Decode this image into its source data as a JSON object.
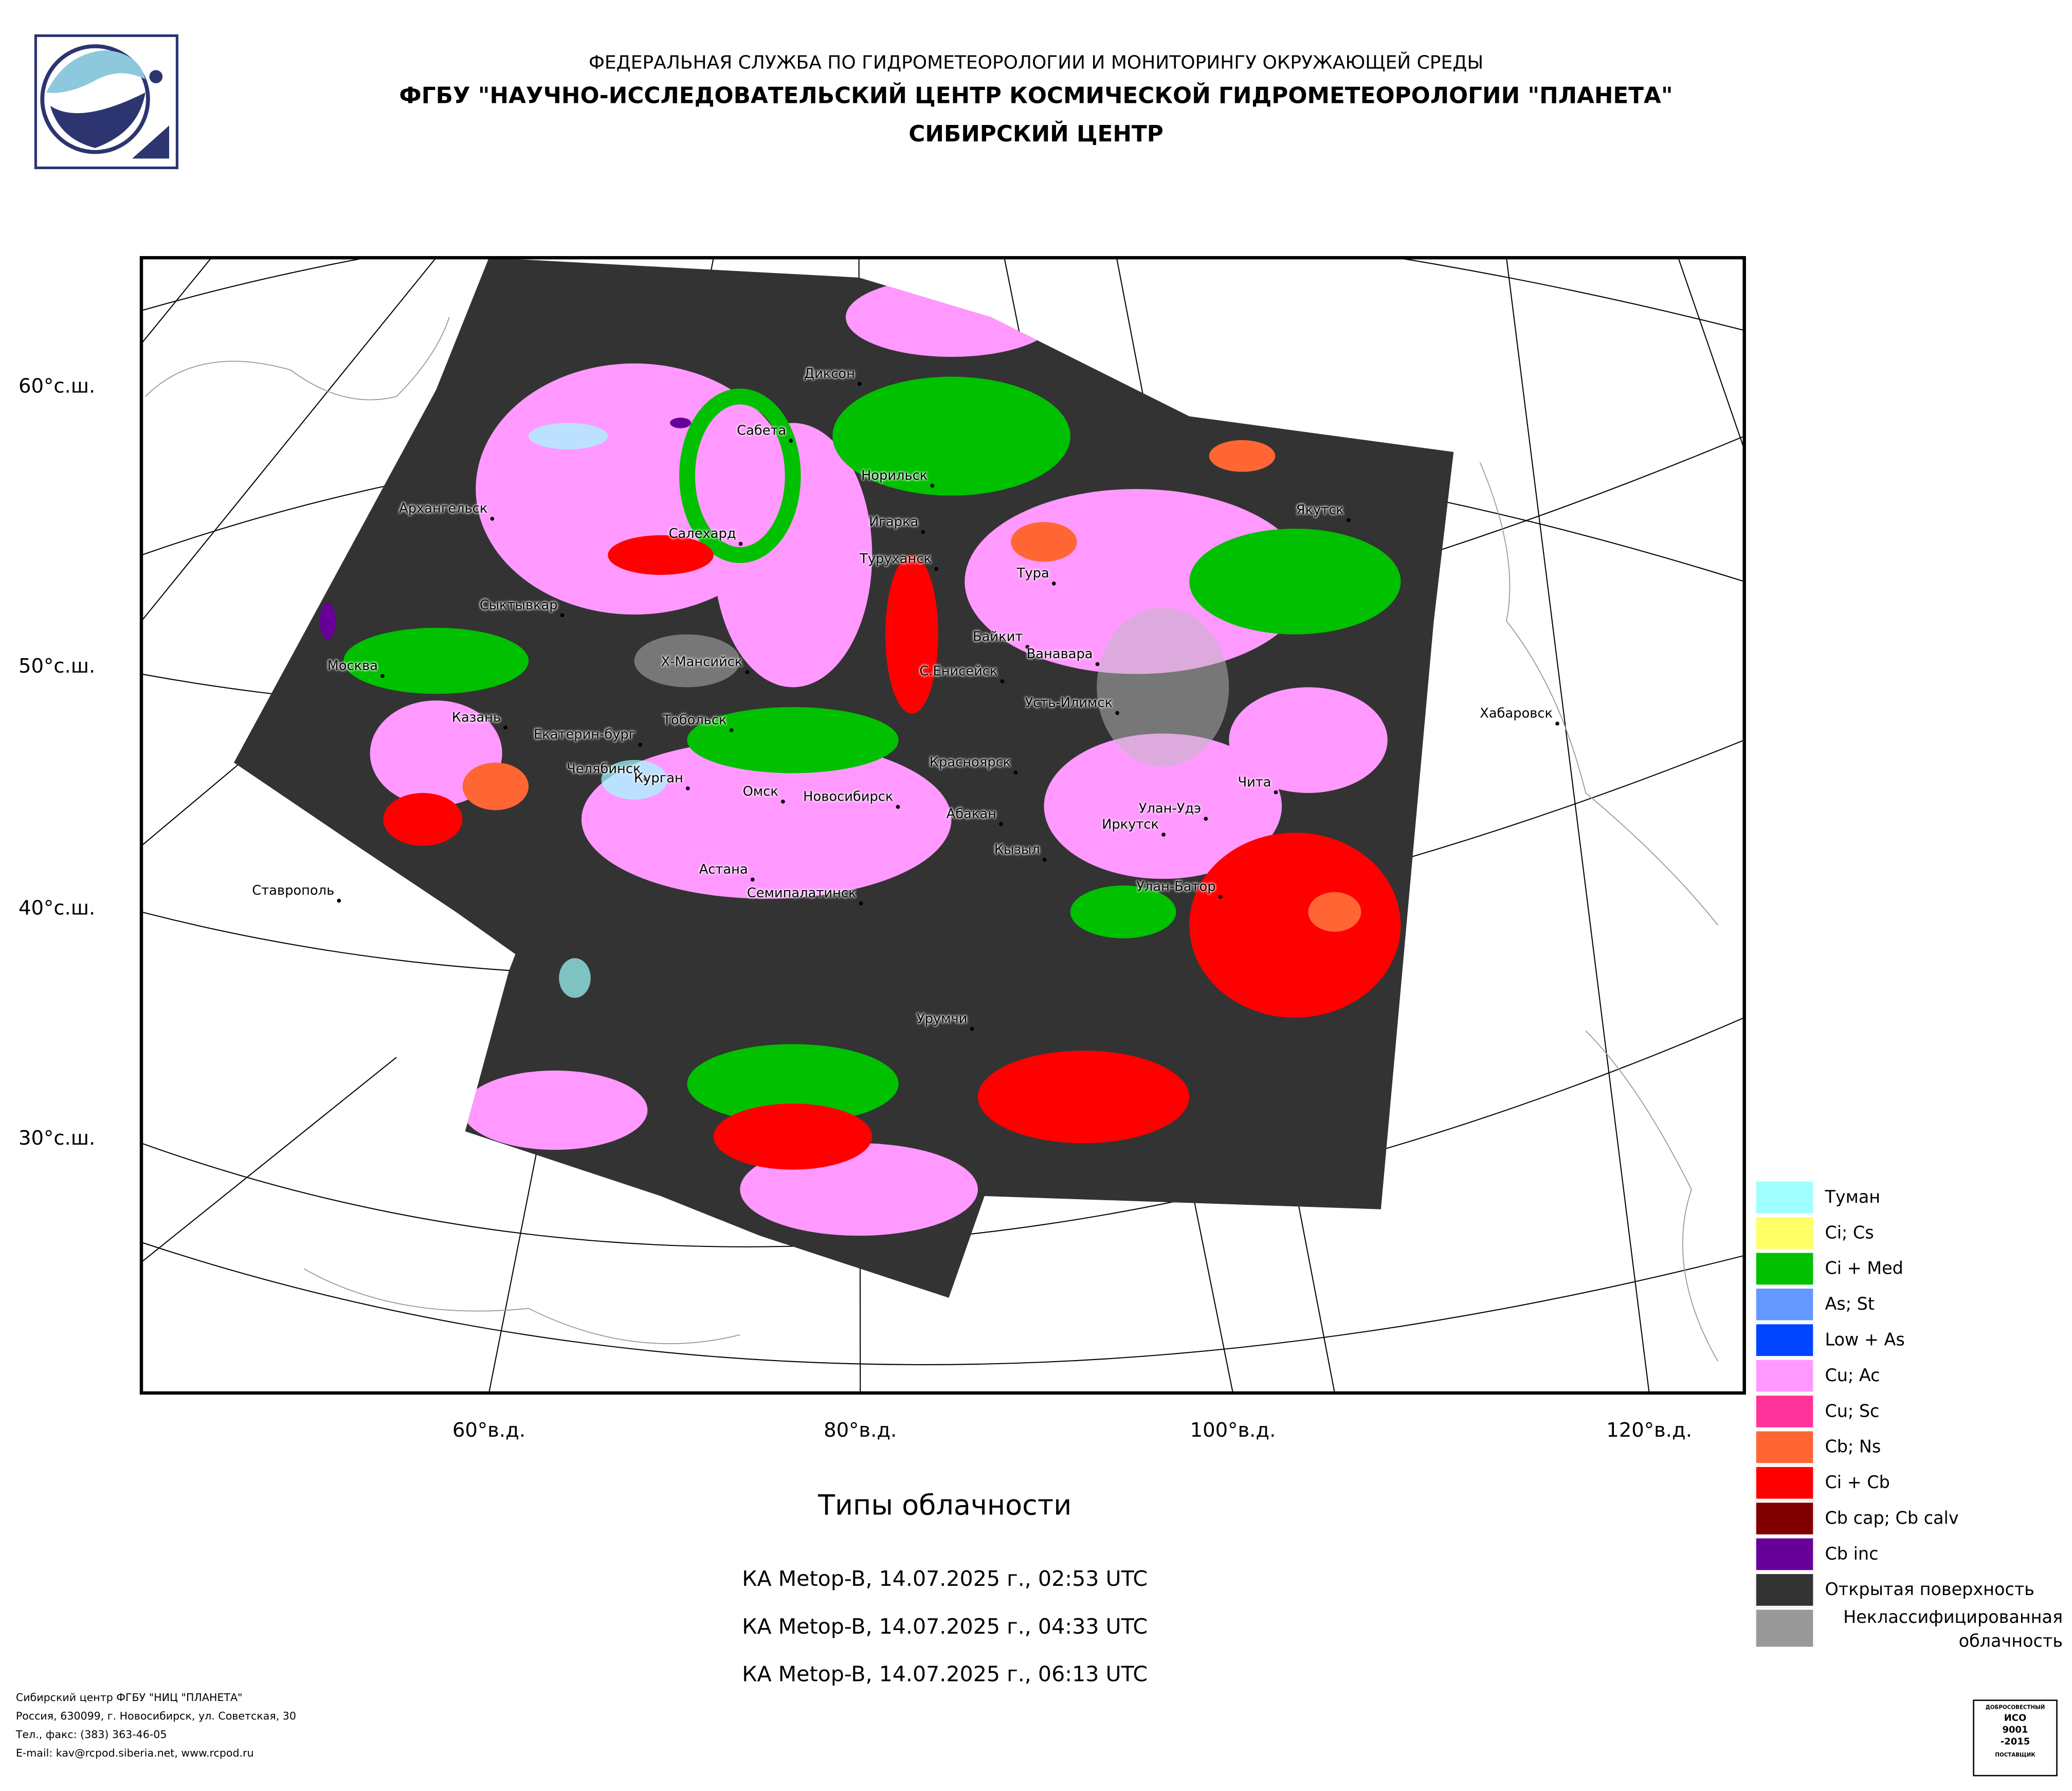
{
  "header": {
    "agency": "ФЕДЕРАЛЬНАЯ СЛУЖБА ПО ГИДРОМЕТЕОРОЛОГИИ И МОНИТОРИНГУ ОКРУЖАЮЩЕЙ СРЕДЫ",
    "organization": "ФГБУ \"НАУЧНО-ИССЛЕДОВАТЕЛЬСКИЙ ЦЕНТР КОСМИЧЕСКОЙ ГИДРОМЕТЕОРОЛОГИИ \"ПЛАНЕТА\"",
    "center": "СИБИРСКИЙ ЦЕНТР"
  },
  "map": {
    "latitude_labels": [
      "60°с.ш.",
      "50°с.ш.",
      "40°с.ш.",
      "30°с.ш."
    ],
    "longitude_labels": [
      "60°в.д.",
      "80°в.д.",
      "100°в.д.",
      "120°в.д."
    ],
    "cities": [
      "Диксон",
      "Сабета",
      "Норильск",
      "Архангельск",
      "Игарка",
      "Салехард",
      "Туруханск",
      "Тура",
      "Якутск",
      "Сыктывкар",
      "Байкит",
      "Ванавара",
      "Х-Мансийск",
      "Москва",
      "С.Енисейск",
      "Усть-Илимск",
      "Хабаровск",
      "Казань",
      "Тобольск",
      "Екатерин-бург",
      "Красноярск",
      "Челябинск",
      "Чита",
      "Курган",
      "Омск",
      "Новосибирск",
      "Улан-Удэ",
      "Абакан",
      "Иркутск",
      "Кызыл",
      "Астана",
      "Ставрополь",
      "Улан-Батор",
      "Семипалатинск",
      "Урумчи"
    ]
  },
  "legend": [
    {
      "label": "Туман",
      "color": "#a0ffff"
    },
    {
      "label": "Ci; Cs",
      "color": "#ffff66"
    },
    {
      "label": "Ci + Med",
      "color": "#00c000"
    },
    {
      "label": "As; St",
      "color": "#6699ff"
    },
    {
      "label": "Low + As",
      "color": "#0044ff"
    },
    {
      "label": "Cu; Ac",
      "color": "#ff99ff"
    },
    {
      "label": "Cu; Sc",
      "color": "#ff3399"
    },
    {
      "label": "Cb; Ns",
      "color": "#ff6633"
    },
    {
      "label": "Ci + Cb",
      "color": "#ff0000"
    },
    {
      "label": "Cb cap; Cb calv",
      "color": "#800000"
    },
    {
      "label": "Cb inc",
      "color": "#660099"
    },
    {
      "label": "Открытая поверхность",
      "color": "#333333"
    },
    {
      "label": "Неклассифицированная облачность",
      "color": "#999999"
    }
  ],
  "caption": {
    "title": "Типы облачности",
    "passes": [
      "КА Metop-B, 14.07.2025 г., 02:53 UTC",
      "КА Metop-B, 14.07.2025 г., 04:33 UTC",
      "КА Metop-B, 14.07.2025 г., 06:13 UTC"
    ]
  },
  "footer": [
    "Сибирский центр ФГБУ \"НИЦ \"ПЛАНЕТА\"",
    "Россия, 630099, г. Новосибирск, ул. Советская, 30",
    "Тел., факс: (383) 363-46-05",
    "E-mail: kav@rcpod.siberia.net, www.rcpod.ru"
  ],
  "badge": {
    "top": "ДОБРОСОВЕСТНЫЙ",
    "standard": "ИСО",
    "number": "9001",
    "year": "-2015",
    "bottom": "ПОСТАВЩИК"
  }
}
